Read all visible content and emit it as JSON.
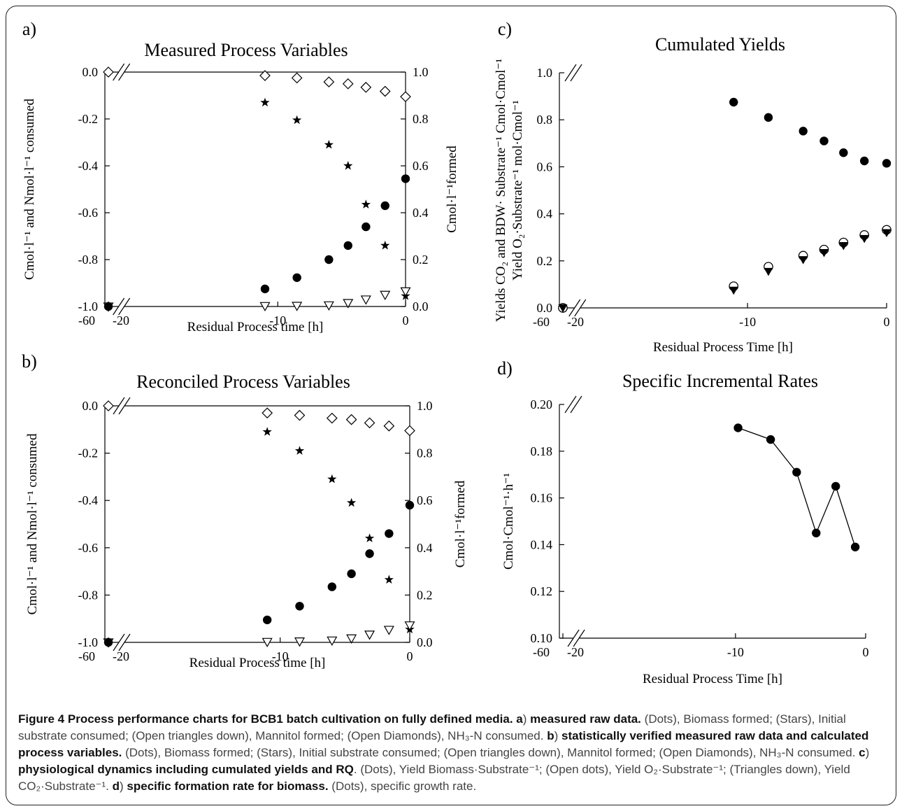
{
  "chart_data": [
    {
      "type": "scatter",
      "panel_label": "a)",
      "title": "Measured Process Variables",
      "xlabel": "Residual Process time [h]",
      "ylabel": "Cmol·l⁻¹ and Nmol·l⁻¹ consumed",
      "y2label": "Cmol·l⁻¹formed",
      "x_ticks": [
        "-60",
        "-20",
        "-10",
        "0"
      ],
      "ylim": [
        -1.0,
        0.0
      ],
      "y_ticks": [
        "0.0",
        "-0.2",
        "-0.4",
        "-0.6",
        "-0.8",
        "-1.0"
      ],
      "y2lim": [
        0.0,
        1.0
      ],
      "y2_ticks": [
        "1.0",
        "0.8",
        "0.6",
        "0.4",
        "0.2",
        "0.0"
      ],
      "series": [
        {
          "marker": "filled-circle",
          "axis": "right",
          "x": [
            -11.0,
            -8.5,
            -6.0,
            -4.5,
            -3.1,
            -1.6,
            0.0
          ],
          "y": [
            0.075,
            0.123,
            0.2,
            0.26,
            0.34,
            0.43,
            0.545
          ]
        },
        {
          "marker": "star",
          "axis": "left",
          "x": [
            -11.0,
            -8.5,
            -6.0,
            -4.5,
            -3.1,
            -1.6,
            0.0
          ],
          "y": [
            -0.13,
            -0.205,
            -0.31,
            -0.4,
            -0.565,
            -0.74,
            -0.955
          ]
        },
        {
          "marker": "open-triangle-down",
          "axis": "right",
          "x": [
            -60,
            -11.0,
            -8.5,
            -6.0,
            -4.5,
            -3.1,
            -1.6,
            0.0
          ],
          "y": [
            0.0,
            0.002,
            0.003,
            0.005,
            0.015,
            0.03,
            0.05,
            0.065
          ]
        },
        {
          "marker": "open-diamond",
          "axis": "left",
          "x": [
            -60,
            -11.0,
            -8.5,
            -6.0,
            -4.5,
            -3.1,
            -1.6,
            0.0
          ],
          "y": [
            0.0,
            -0.015,
            -0.025,
            -0.042,
            -0.05,
            -0.065,
            -0.082,
            -0.105
          ]
        },
        {
          "marker": "filled-circle",
          "axis": "left",
          "x": [
            -60
          ],
          "y": [
            -1.0
          ]
        }
      ]
    },
    {
      "type": "scatter",
      "panel_label": "b)",
      "title": "Reconciled Process Variables",
      "xlabel": "Residual Process time [h]",
      "ylabel": "Cmol·l⁻¹ and Nmol·l⁻¹ consumed",
      "y2label": "Cmol·l⁻¹formed",
      "x_ticks": [
        "-60",
        "-20",
        "-10",
        "0"
      ],
      "ylim": [
        -1.0,
        0.0
      ],
      "y_ticks": [
        "0.0",
        "-0.2",
        "-0.4",
        "-0.6",
        "-0.8",
        "-1.0"
      ],
      "y2lim": [
        0.0,
        1.0
      ],
      "y2_ticks": [
        "1.0",
        "0.8",
        "0.6",
        "0.4",
        "0.2",
        "0.0"
      ],
      "series": [
        {
          "marker": "filled-circle",
          "axis": "right",
          "x": [
            -11.0,
            -8.5,
            -6.0,
            -4.5,
            -3.1,
            -1.6,
            0.0
          ],
          "y": [
            0.095,
            0.153,
            0.235,
            0.29,
            0.375,
            0.46,
            0.58
          ]
        },
        {
          "marker": "star",
          "axis": "left",
          "x": [
            -11.0,
            -8.5,
            -6.0,
            -4.5,
            -3.1,
            -1.6,
            0.0
          ],
          "y": [
            -0.11,
            -0.19,
            -0.31,
            -0.41,
            -0.56,
            -0.735,
            -0.945
          ]
        },
        {
          "marker": "open-triangle-down",
          "axis": "right",
          "x": [
            -60,
            -11.0,
            -8.5,
            -6.0,
            -4.5,
            -3.1,
            -1.6,
            0.0
          ],
          "y": [
            0.0,
            0.002,
            0.004,
            0.008,
            0.017,
            0.033,
            0.053,
            0.072
          ]
        },
        {
          "marker": "open-diamond",
          "axis": "left",
          "x": [
            -60,
            -11.0,
            -8.5,
            -6.0,
            -4.5,
            -3.1,
            -1.6,
            0.0
          ],
          "y": [
            0.0,
            -0.03,
            -0.04,
            -0.052,
            -0.058,
            -0.072,
            -0.085,
            -0.105
          ]
        },
        {
          "marker": "filled-circle",
          "axis": "left",
          "x": [
            -60
          ],
          "y": [
            -1.0
          ]
        }
      ]
    },
    {
      "type": "scatter",
      "panel_label": "c)",
      "title": "Cumulated Yields",
      "xlabel": "Residual Process Time [h]",
      "ylabel": "Yields CO₂ and BDW· Substrate⁻¹ Cmol·Cmol⁻¹",
      "ylabel2": "Yield O₂·Substrate⁻¹ mol·Cmol⁻¹",
      "x_ticks": [
        "-60",
        "-20",
        "-10",
        "0"
      ],
      "ylim": [
        0.0,
        1.0
      ],
      "y_ticks": [
        "1.0",
        "0.8",
        "0.6",
        "0.4",
        "0.2",
        "0.0"
      ],
      "series": [
        {
          "marker": "filled-circle",
          "x": [
            -11.0,
            -8.5,
            -6.0,
            -4.5,
            -3.1,
            -1.6,
            0.0
          ],
          "y": [
            0.875,
            0.81,
            0.752,
            0.71,
            0.66,
            0.625,
            0.615
          ]
        },
        {
          "marker": "open-circle",
          "x": [
            -60,
            -11.0,
            -8.5,
            -6.0,
            -4.5,
            -3.1,
            -1.6,
            0.0
          ],
          "y": [
            0.0,
            0.092,
            0.175,
            0.222,
            0.248,
            0.278,
            0.31,
            0.332
          ]
        },
        {
          "marker": "filled-triangle-down",
          "x": [
            -60,
            -11.0,
            -8.5,
            -6.0,
            -4.5,
            -3.1,
            -1.6,
            0.0
          ],
          "y": [
            0.0,
            0.075,
            0.155,
            0.205,
            0.235,
            0.265,
            0.295,
            0.32
          ]
        }
      ]
    },
    {
      "type": "line",
      "panel_label": "d)",
      "title": "Specific Incremental Rates",
      "xlabel": "Residual Process Time [h]",
      "ylabel": "Cmol·Cmol⁻¹·h⁻¹",
      "x_ticks": [
        "-60",
        "-20",
        "-10",
        "0"
      ],
      "ylim": [
        0.1,
        0.2
      ],
      "y_ticks": [
        "0.20",
        "0.18",
        "0.16",
        "0.14",
        "0.12",
        "0.10"
      ],
      "series": [
        {
          "marker": "filled-circle",
          "x": [
            -9.8,
            -7.3,
            -5.3,
            -3.8,
            -2.3,
            -0.8
          ],
          "y": [
            0.19,
            0.185,
            0.171,
            0.145,
            0.165,
            0.139
          ]
        }
      ]
    }
  ],
  "caption": {
    "figure_label": "Figure 4",
    "title": "Process performance charts for BCB1 batch cultivation on fully defined media.",
    "a_label": "a",
    "a_title": "measured raw data.",
    "a_text": "(Dots), Biomass formed; (Stars), Initial substrate consumed; (Open triangles down), Mannitol formed; (Open Diamonds), NH₃-N consumed.",
    "b_label": "b",
    "b_title": "statistically verified measured raw data and calculated process variables.",
    "b_text": "(Dots), Biomass formed; (Stars), Initial substrate consumed; (Open triangles down), Mannitol formed; (Open Diamonds), NH₃-N consumed.",
    "c_label": "c",
    "c_title": "physiological dynamics including cumulated yields and RQ",
    "c_text": "(Dots), Yield Biomass·Substrate⁻¹; (Open dots), Yield O₂·Substrate⁻¹; (Triangles down), Yield CO₂·Substrate⁻¹.",
    "d_label": "d",
    "d_title": "specific formation rate for biomass.",
    "d_text": "(Dots), specific growth rate."
  }
}
